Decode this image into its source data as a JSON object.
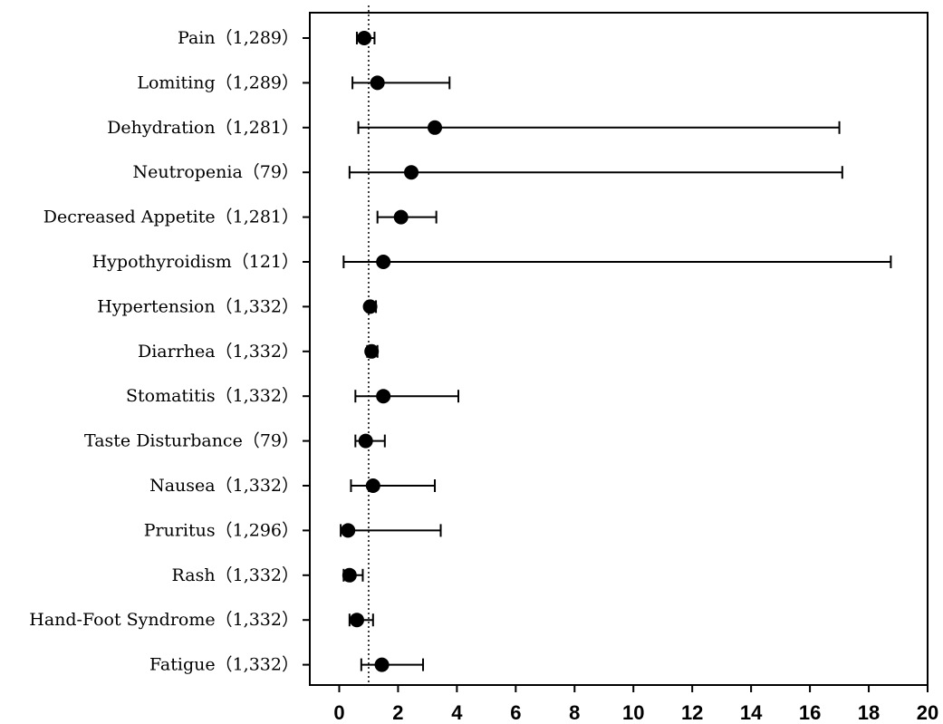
{
  "chart_data": {
    "type": "forest",
    "categories": [
      "Pain（1,289）",
      "Lomiting（1,289）",
      "Dehydration（1,281）",
      "Neutropenia（79）",
      "Decreased Appetite（1,281）",
      "Hypothyroidism（121）",
      "Hypertension（1,332）",
      "Diarrhea（1,332）",
      "Stomatitis（1,332）",
      "Taste Disturbance（79）",
      "Nausea（1,332）",
      "Pruritus（1,296）",
      "Rash（1,332）",
      "Hand-Foot Syndrome（1,332）",
      "Fatigue（1,332）"
    ],
    "estimates": [
      0.85,
      1.3,
      3.25,
      2.45,
      2.1,
      1.5,
      1.05,
      1.1,
      1.5,
      0.9,
      1.15,
      0.3,
      0.35,
      0.6,
      1.45
    ],
    "lower": [
      0.6,
      0.45,
      0.65,
      0.35,
      1.3,
      0.15,
      0.95,
      0.95,
      0.55,
      0.55,
      0.4,
      0.05,
      0.15,
      0.35,
      0.75
    ],
    "upper": [
      1.2,
      3.75,
      17.0,
      17.1,
      3.3,
      18.75,
      1.25,
      1.3,
      4.05,
      1.55,
      3.25,
      3.45,
      0.8,
      1.15,
      2.85
    ],
    "reference_line": 1,
    "xlim": [
      -1,
      20
    ],
    "xticks": [
      0,
      2,
      4,
      6,
      8,
      10,
      12,
      14,
      16,
      18,
      20
    ],
    "xlabel": "",
    "ylabel": "",
    "title": "",
    "grid": false
  }
}
